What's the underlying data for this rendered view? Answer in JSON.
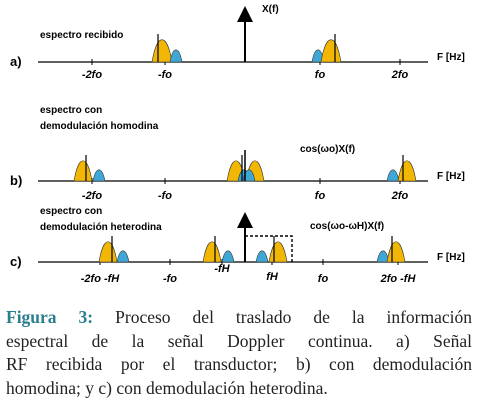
{
  "panels": [
    {
      "label": "a)",
      "title_lines": [
        "espectro recibido"
      ],
      "formula": "X(f)",
      "axis_label": "F [Hz]",
      "ticks": [
        "-2fo",
        "-fo",
        "fo",
        "2fo"
      ]
    },
    {
      "label": "b)",
      "title_lines": [
        "espectro con",
        "demodulación homodina"
      ],
      "formula": "cos(ωo)X(f)",
      "axis_label": "F [Hz]",
      "ticks": [
        "-2fo",
        "-fo",
        "fo",
        "2fo"
      ]
    },
    {
      "label": "c)",
      "title_lines": [
        "espectro con",
        "demodulación heterodina"
      ],
      "formula": "cos(ωo-ωH)X(f)",
      "axis_label": "F [Hz]",
      "ticks": [
        "-2fo -fH",
        "-fo",
        "-fH",
        "fH",
        "fo",
        "2fo -fH"
      ]
    }
  ],
  "caption": {
    "label": "Figura 3:",
    "lines": [
      "Proceso del traslado de la información",
      "espectral de la señal Doppler continua.  a) Señal",
      "RF recibida por el transductor; b) con demodulación",
      "homodina; y c) con demodulación heterodina."
    ]
  }
}
